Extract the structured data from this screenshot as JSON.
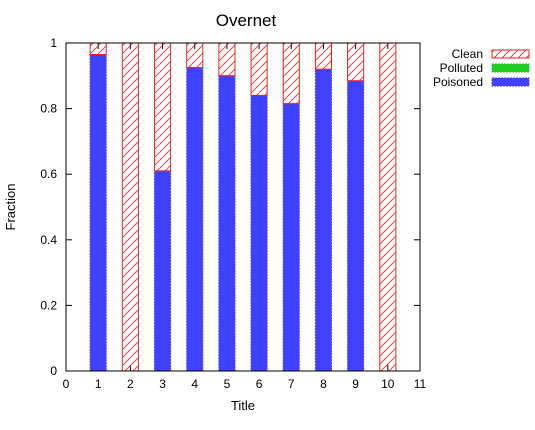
{
  "chart_data": {
    "type": "bar",
    "stacked": true,
    "title": "Overnet",
    "xlabel": "Title",
    "ylabel": "Fraction",
    "xlim": [
      0,
      11
    ],
    "ylim": [
      0,
      1
    ],
    "x_ticks": [
      "0",
      "1",
      "2",
      "3",
      "4",
      "5",
      "6",
      "7",
      "8",
      "9",
      "10",
      "11"
    ],
    "y_ticks": [
      "0",
      "0.2",
      "0.4",
      "0.6",
      "0.8",
      "1"
    ],
    "x": [
      1,
      2,
      3,
      4,
      5,
      6,
      7,
      8,
      9,
      10
    ],
    "legend_position": "top-right-outside",
    "grid": false,
    "series": [
      {
        "name": "Poisoned",
        "color": "#4040ff",
        "pattern": "solid",
        "values": [
          0.965,
          0.0,
          0.61,
          0.925,
          0.9,
          0.84,
          0.815,
          0.92,
          0.885,
          0.0
        ]
      },
      {
        "name": "Polluted",
        "color": "#22cc22",
        "pattern": "solid",
        "values": [
          0,
          0,
          0,
          0,
          0,
          0,
          0,
          0,
          0,
          0
        ]
      },
      {
        "name": "Clean",
        "color": "#ee2222",
        "pattern": "hatched",
        "values": [
          0.035,
          1.0,
          0.39,
          0.075,
          0.1,
          0.16,
          0.185,
          0.08,
          0.115,
          1.0
        ]
      }
    ],
    "legend_order": [
      "Clean",
      "Polluted",
      "Poisoned"
    ]
  }
}
